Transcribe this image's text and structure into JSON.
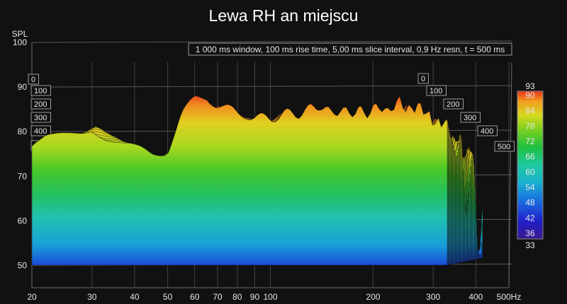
{
  "chart_data": {
    "type": "waterfall",
    "title": "Lewa RH an miejscu",
    "info": "1 000 ms window, 100 ms rise time, 5,00 ms slice interval, 0,9 Hz resn, t = 500 ms",
    "ylabel": "SPL",
    "yticks": [
      50,
      60,
      70,
      80,
      90,
      100
    ],
    "ylim": [
      45,
      100
    ],
    "xscale": "log",
    "xlim": [
      20,
      500
    ],
    "xticks": [
      "20",
      "30",
      "40",
      "50",
      "60",
      "70",
      "80",
      "90",
      "100",
      "200",
      "300",
      "400",
      "500Hz"
    ],
    "xtick_values": [
      20,
      30,
      40,
      50,
      60,
      70,
      80,
      90,
      100,
      200,
      300,
      400,
      500
    ],
    "time_ticks_ms": [
      "0",
      "100",
      "200",
      "300",
      "400",
      "500"
    ],
    "colorbar": {
      "min_label": "33",
      "max_label": "93",
      "ticks": [
        "90",
        "84",
        "78",
        "72",
        "66",
        "60",
        "54",
        "48",
        "42",
        "36"
      ],
      "colors": [
        "#3a1a8c",
        "#2020c8",
        "#1a6ae0",
        "#18b0d0",
        "#20c8a0",
        "#20c040",
        "#7ad020",
        "#d8d820",
        "#f0a020",
        "#e83018"
      ]
    },
    "front_slice_profile": {
      "freq_hz": [
        20,
        22,
        25,
        28,
        30,
        33,
        37,
        40,
        45,
        50,
        55,
        60,
        65,
        70,
        75,
        80,
        85,
        90,
        95,
        100,
        110,
        120,
        130,
        140,
        150,
        160,
        170,
        180,
        190,
        200,
        210,
        220,
        230,
        240,
        250,
        260,
        270,
        280,
        290,
        300
      ],
      "spl_db": [
        76,
        78,
        79,
        80,
        81,
        79,
        77,
        76,
        75,
        76,
        84,
        87,
        88,
        86,
        85,
        84,
        84,
        83,
        83,
        83,
        84,
        84,
        85,
        86,
        84,
        85,
        84,
        85,
        84,
        85,
        86,
        84,
        86,
        87,
        85,
        85,
        86,
        85,
        84,
        82
      ]
    }
  }
}
